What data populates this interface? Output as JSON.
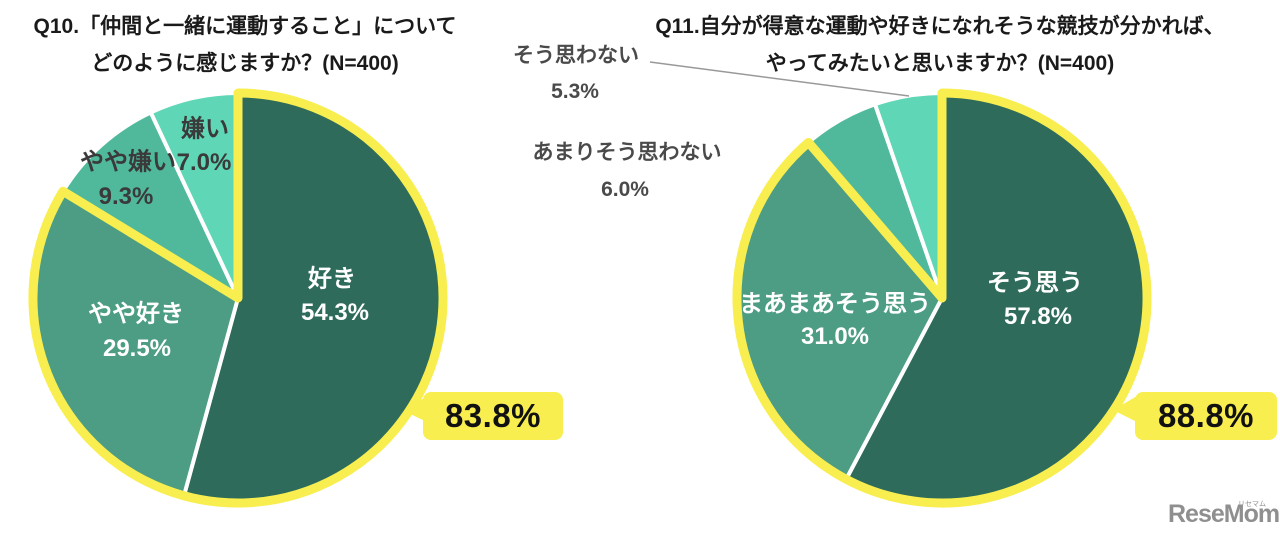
{
  "page": {
    "background": "#FFFFFF"
  },
  "chart_data": [
    {
      "type": "pie",
      "title": "Q10.「仲間と一緒に運動すること」について どのように感じますか？(N=400)",
      "title_lines": [
        "Q10.「仲間と一緒に運動すること」について",
        "どのように感じますか？(N=400)"
      ],
      "n": 400,
      "unit": "%",
      "direction": "clockwise",
      "start_angle": "12-oclock",
      "categories": [
        "好き",
        "やや好き",
        "やや嫌い",
        "嫌い"
      ],
      "values": [
        54.3,
        29.5,
        9.3,
        7.0
      ],
      "slices": [
        {
          "label": "好き",
          "value": 54.3,
          "pct_label": "54.3%",
          "color": "#2E6B5B",
          "text_color": "#FFFFFF"
        },
        {
          "label": "やや好き",
          "value": 29.5,
          "pct_label": "29.5%",
          "color": "#4C9D83",
          "text_color": "#FFFFFF"
        },
        {
          "label": "やや嫌い",
          "value": 9.3,
          "pct_label": "9.3%",
          "color": "#50B99C",
          "text_color": "#3A3A3A"
        },
        {
          "label": "嫌い",
          "value": 7.0,
          "pct_label": "7.0%",
          "color": "#5FD6B5",
          "text_color": "#3A3A3A"
        }
      ],
      "highlight": {
        "label": "83.8%",
        "value": 83.8,
        "covers": [
          "好き",
          "やや好き"
        ],
        "slice_count": 2,
        "color": "#F8EE4F"
      },
      "separator_color": "#FFFFFF",
      "legend": "none"
    },
    {
      "type": "pie",
      "title": "Q11.自分が得意な運動や好きになれそうな競技が分かれば、やってみたいと思いますか？(N=400)",
      "title_lines": [
        "Q11.自分が得意な運動や好きになれそうな競技が分かれば、",
        "やってみたいと思いますか？(N=400)"
      ],
      "n": 400,
      "unit": "%",
      "direction": "clockwise",
      "start_angle": "12-oclock",
      "categories": [
        "そう思う",
        "まあまあそう思う",
        "あまりそう思わない",
        "そう思わない"
      ],
      "values": [
        57.8,
        31.0,
        6.0,
        5.3
      ],
      "slices": [
        {
          "label": "そう思う",
          "value": 57.8,
          "pct_label": "57.8%",
          "color": "#2E6B5B",
          "text_color": "#FFFFFF"
        },
        {
          "label": "まあまあそう思う",
          "value": 31.0,
          "pct_label": "31.0%",
          "color": "#4C9D83",
          "text_color": "#FFFFFF"
        },
        {
          "label": "あまりそう思わない",
          "value": 6.0,
          "pct_label": "6.0%",
          "color": "#50B99C",
          "text_color": "#4A4A4A",
          "label_position": "outside"
        },
        {
          "label": "そう思わない",
          "value": 5.3,
          "pct_label": "5.3%",
          "color": "#5FD6B5",
          "text_color": "#4A4A4A",
          "label_position": "outside",
          "leader_line": true
        }
      ],
      "highlight": {
        "label": "88.8%",
        "value": 88.8,
        "covers": [
          "そう思う",
          "まあまあそう思う"
        ],
        "slice_count": 2,
        "color": "#F8EE4F"
      },
      "separator_color": "#FFFFFF",
      "legend": "none"
    }
  ],
  "logo": {
    "text": "ReseMom.",
    "ruby": "リセマム",
    "color": "#8F8F8F"
  }
}
